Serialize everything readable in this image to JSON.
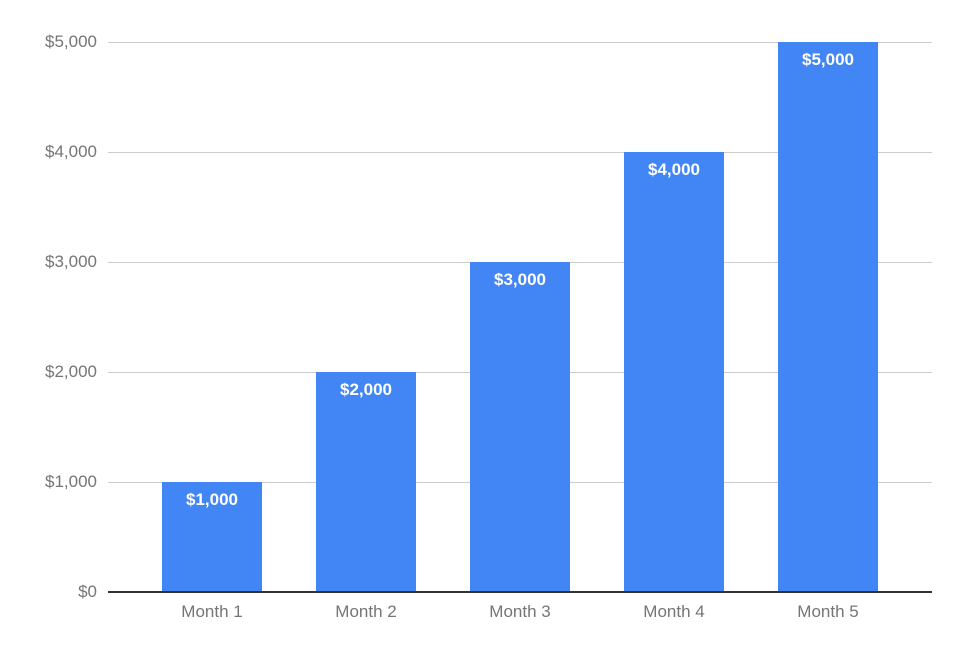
{
  "chart_data": {
    "type": "bar",
    "title": "",
    "xlabel": "",
    "ylabel": "",
    "categories": [
      "Month 1",
      "Month 2",
      "Month 3",
      "Month 4",
      "Month 5"
    ],
    "values": [
      1000,
      2000,
      3000,
      4000,
      5000
    ],
    "bar_labels": [
      "$1,000",
      "$2,000",
      "$3,000",
      "$4,000",
      "$5,000"
    ],
    "y_ticks": [
      {
        "value": 0,
        "label": "$0"
      },
      {
        "value": 1000,
        "label": "$1,000"
      },
      {
        "value": 2000,
        "label": "$2,000"
      },
      {
        "value": 3000,
        "label": "$3,000"
      },
      {
        "value": 4000,
        "label": "$4,000"
      },
      {
        "value": 5000,
        "label": "$5,000"
      }
    ],
    "ylim": [
      0,
      5000
    ],
    "grid": "horizontal",
    "legend": "none",
    "colors": {
      "bar": "#4285f4",
      "bar_label": "#ffffff",
      "gridline": "#cccccc",
      "axis_line": "#333333",
      "tick_label": "#757575",
      "background": "#ffffff"
    }
  }
}
